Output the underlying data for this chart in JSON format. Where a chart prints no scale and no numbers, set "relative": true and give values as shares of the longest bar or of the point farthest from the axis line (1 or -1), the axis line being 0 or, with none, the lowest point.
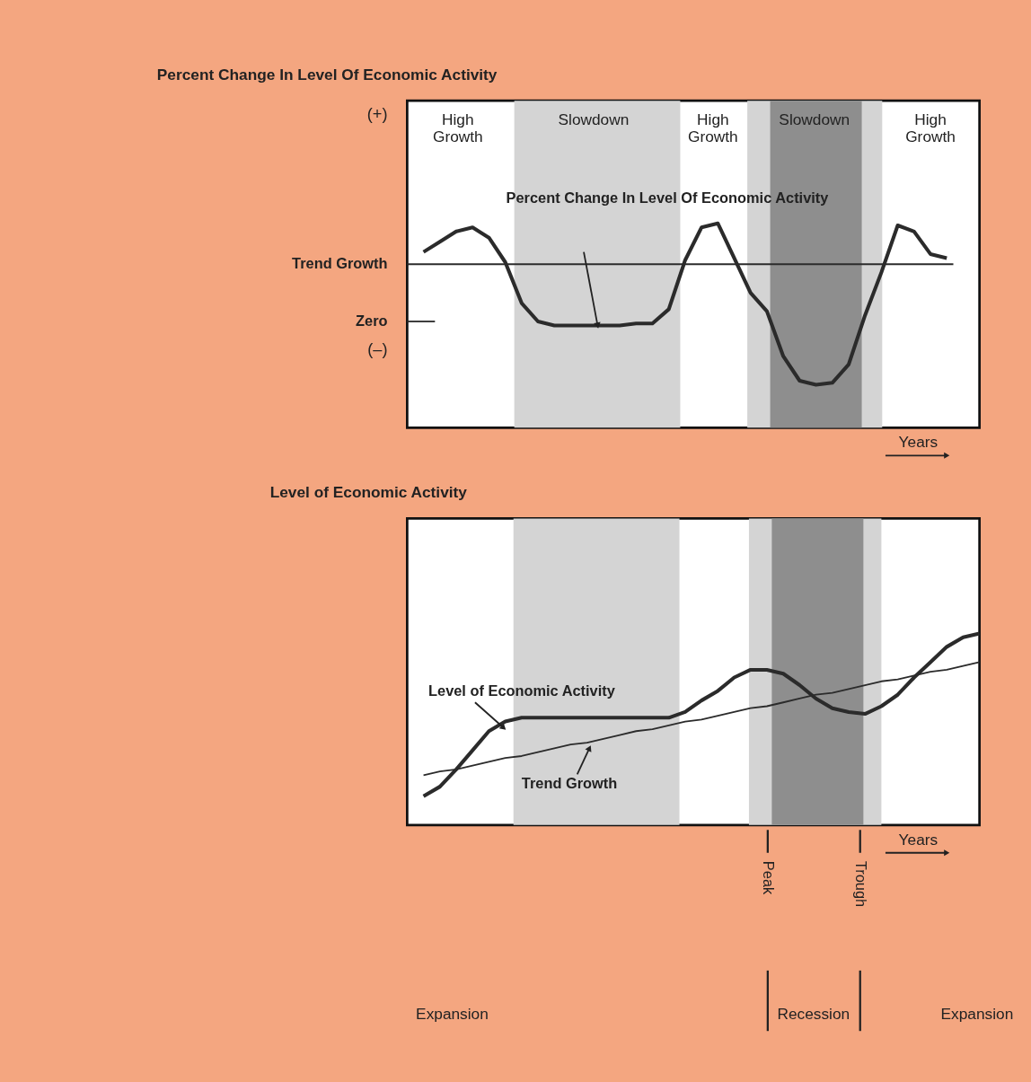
{
  "chart_data": [
    {
      "type": "line",
      "title": "Percent Change In Level Of Economic Activity",
      "xlabel": "Years",
      "relative": true,
      "grid": false,
      "categories": [
        null,
        null,
        null,
        null,
        null,
        null,
        null,
        null,
        null,
        null,
        null,
        null,
        null,
        null,
        null,
        null,
        null,
        null,
        null,
        null,
        null,
        null,
        null,
        null,
        null,
        null,
        null,
        null,
        null,
        null,
        null,
        null,
        null,
        null,
        null,
        null
      ],
      "series": [
        {
          "color": "#2b2b2b",
          "values": [
            null,
            0.86,
            0.91,
            0.96,
            0.98,
            0.93,
            0.81,
            0.61,
            0.52,
            0.5,
            0.5,
            0.5,
            0.5,
            0.5,
            0.51,
            0.51,
            0.58,
            0.82,
            0.98,
            1.0,
            0.83,
            0.66,
            0.57,
            0.35,
            0.23,
            0.21,
            0.22,
            0.31,
            0.55,
            0.76,
            0.99,
            0.96,
            0.85,
            0.83,
            null,
            null
          ]
        }
      ],
      "ref_lines": [
        {
          "axis": "y",
          "value": 0.8,
          "label": "Trend Growth",
          "color": "#2b2b2b"
        },
        {
          "axis": "y",
          "value": 0.52,
          "label": "Zero",
          "color": "#2b2b2b"
        }
      ],
      "annotations": [
        "(+)",
        "(–)",
        "Percent Change In Level Of Economic Activity",
        "High Growth",
        "Slowdown",
        "High Growth",
        "Slowdown",
        "High Growth"
      ]
    },
    {
      "type": "line",
      "title": "Level of Economic Activity",
      "xlabel": "Years",
      "relative": true,
      "grid": false,
      "categories": [
        null,
        null,
        null,
        null,
        null,
        null,
        null,
        null,
        null,
        null,
        null,
        null,
        null,
        null,
        null,
        null,
        null,
        null,
        null,
        null,
        null,
        null,
        null,
        null,
        null,
        null,
        null,
        null,
        null,
        null,
        null,
        null,
        null,
        null,
        null,
        null
      ],
      "series": [
        {
          "color": "#2b2b2b",
          "values": [
            null,
            0.15,
            0.2,
            0.29,
            0.39,
            0.49,
            0.54,
            0.56,
            0.56,
            0.56,
            0.56,
            0.56,
            0.56,
            0.56,
            0.56,
            0.56,
            0.56,
            0.59,
            0.65,
            0.7,
            0.77,
            0.81,
            0.81,
            0.79,
            0.73,
            0.66,
            0.61,
            0.59,
            0.58,
            0.62,
            0.68,
            0.77,
            0.85,
            0.93,
            0.98,
            1.0
          ]
        },
        {
          "type": "line",
          "color": "#2b2b2b",
          "values": [
            null,
            0.26,
            0.28,
            0.29,
            0.31,
            0.33,
            0.35,
            0.36,
            0.38,
            0.4,
            0.42,
            0.43,
            0.45,
            0.47,
            0.49,
            0.5,
            0.52,
            0.54,
            0.55,
            0.57,
            0.59,
            0.61,
            0.62,
            0.64,
            0.66,
            0.68,
            0.69,
            0.71,
            0.73,
            0.75,
            0.76,
            0.78,
            0.8,
            0.81,
            0.83,
            0.85
          ]
        }
      ],
      "annotations": [
        "Level of Economic Activity",
        "Trend Growth",
        "Peak",
        "Trough",
        "Expansion",
        "Recession",
        "Expansion"
      ]
    }
  ]
}
